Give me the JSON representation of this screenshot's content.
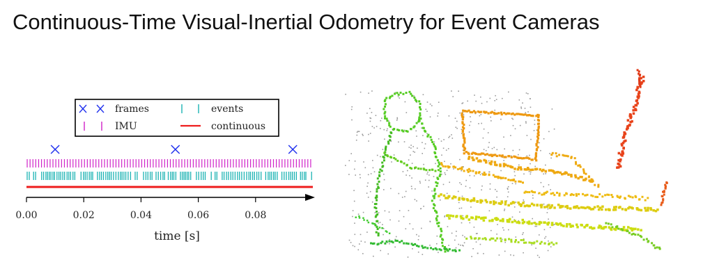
{
  "slide": {
    "title": "Continuous-Time Visual-Inertial Odometry for Event Cameras"
  },
  "timeline": {
    "legend": {
      "frames": "frames",
      "events": "events",
      "imu": "IMU",
      "continuous": "continuous"
    },
    "xlabel": "time [s]",
    "ticks": [
      "0.00",
      "0.02",
      "0.04",
      "0.06",
      "0.08"
    ],
    "tick_values": [
      0.0,
      0.02,
      0.04,
      0.06,
      0.08
    ],
    "xlim": [
      0.0,
      0.1
    ],
    "frame_times": [
      0.01,
      0.052,
      0.093
    ],
    "imu_rate_hz": 1000,
    "colors": {
      "frames": "#2233ee",
      "events": "#1bb3b3",
      "imu": "#d020c8",
      "continuous": "#ee1c1c"
    }
  }
}
